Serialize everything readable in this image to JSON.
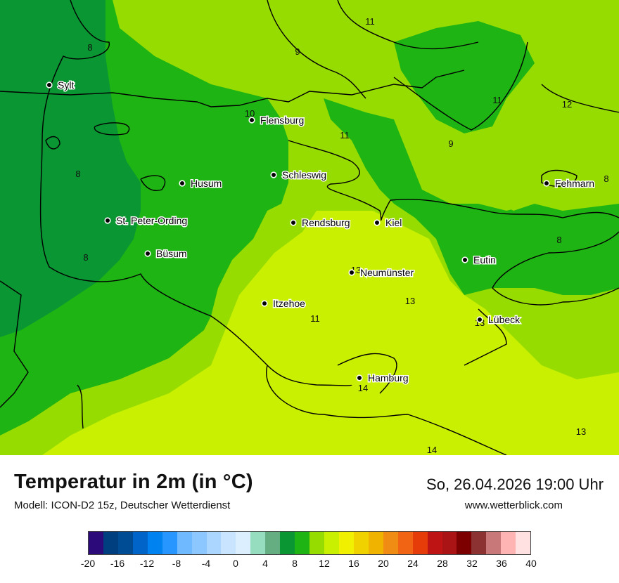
{
  "map": {
    "cities": [
      {
        "name": "Sylt"
      },
      {
        "name": "Flensburg"
      },
      {
        "name": "Husum"
      },
      {
        "name": "Schleswig"
      },
      {
        "name": "St. Peter-Ording"
      },
      {
        "name": "Rendsburg"
      },
      {
        "name": "Kiel"
      },
      {
        "name": "Büsum"
      },
      {
        "name": "Fehmarn"
      },
      {
        "name": "Eutin"
      },
      {
        "name": "Neumünster"
      },
      {
        "name": "Itzehoe"
      },
      {
        "name": "Lübeck"
      },
      {
        "name": "Hamburg"
      }
    ],
    "isotherm_labels": [
      "8",
      "11",
      "9",
      "11",
      "12",
      "10",
      "11",
      "9",
      "8",
      "8",
      "8",
      "8",
      "13",
      "13",
      "11",
      "13",
      "14",
      "13",
      "14"
    ]
  },
  "footer": {
    "title": "Temperatur in 2m (in °C)",
    "subtitle": "Modell: ICON-D2 15z, Deutscher Wetterdienst",
    "datetime": "So, 26.04.2026 19:00 Uhr",
    "website": "www.wetterblick.com"
  },
  "legend": {
    "ticks": [
      "-20",
      "-16",
      "-12",
      "-8",
      "-4",
      "0",
      "4",
      "8",
      "12",
      "16",
      "20",
      "24",
      "28",
      "32",
      "36",
      "40"
    ],
    "colors": [
      "#2d0a7a",
      "#003f7f",
      "#004c94",
      "#0064c8",
      "#0082f0",
      "#2896ff",
      "#6eb9ff",
      "#8cc8ff",
      "#aad6ff",
      "#c8e4ff",
      "#dcefff",
      "#96dcbe",
      "#64ae82",
      "#0a9632",
      "#1eb414",
      "#96dc00",
      "#c8f000",
      "#f0f000",
      "#f0d200",
      "#f0b400",
      "#f08c14",
      "#f06414",
      "#e63c0a",
      "#be1414",
      "#aa1414",
      "#7d0000",
      "#8c3232",
      "#c87878",
      "#ffb4b4",
      "#ffe1e1"
    ]
  }
}
